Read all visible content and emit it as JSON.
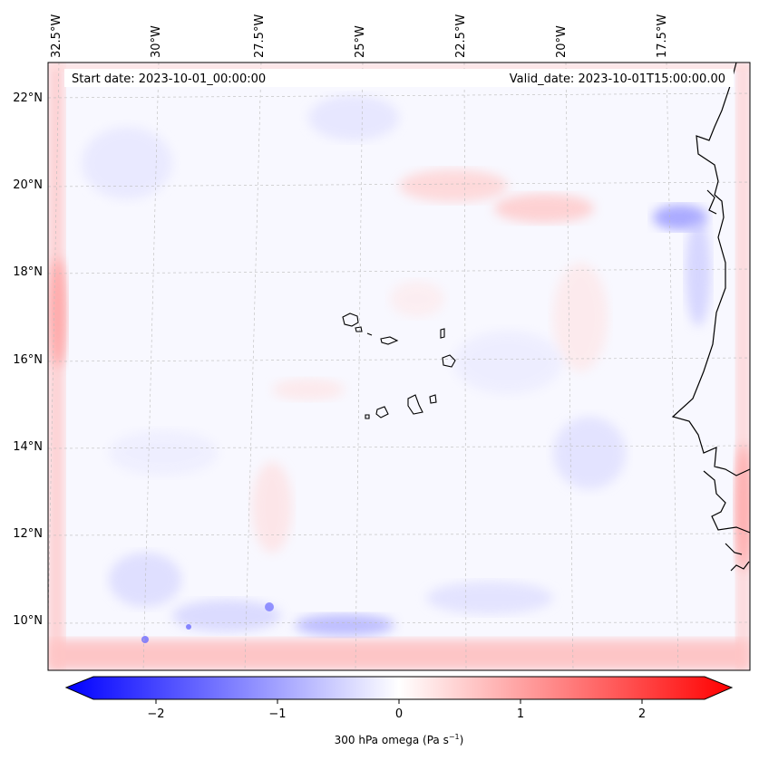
{
  "map": {
    "start_label": "Start date: 2023-10-01_00:00:00",
    "valid_label": "Valid_date: 2023-10-01T15:00:00.00",
    "lon_labels": [
      "32.5°W",
      "30°W",
      "27.5°W",
      "25°W",
      "22.5°W",
      "20°W",
      "17.5°W"
    ],
    "lat_labels": [
      "22°N",
      "20°N",
      "18°N",
      "16°N",
      "14°N",
      "12°N",
      "10°N"
    ],
    "colors": {
      "negative": "#0000ff",
      "neutral": "#f8f8ff",
      "positive": "#ff0000",
      "coastline": "#000000",
      "gridline": "#bbbbbb"
    }
  },
  "colorbar": {
    "label": "300 hPa omega (Pa s",
    "label_exp": "−1",
    "label_end": ")",
    "ticks": [
      "−2",
      "−1",
      "0",
      "1",
      "2"
    ],
    "range": [
      -2.75,
      2.75
    ]
  }
}
